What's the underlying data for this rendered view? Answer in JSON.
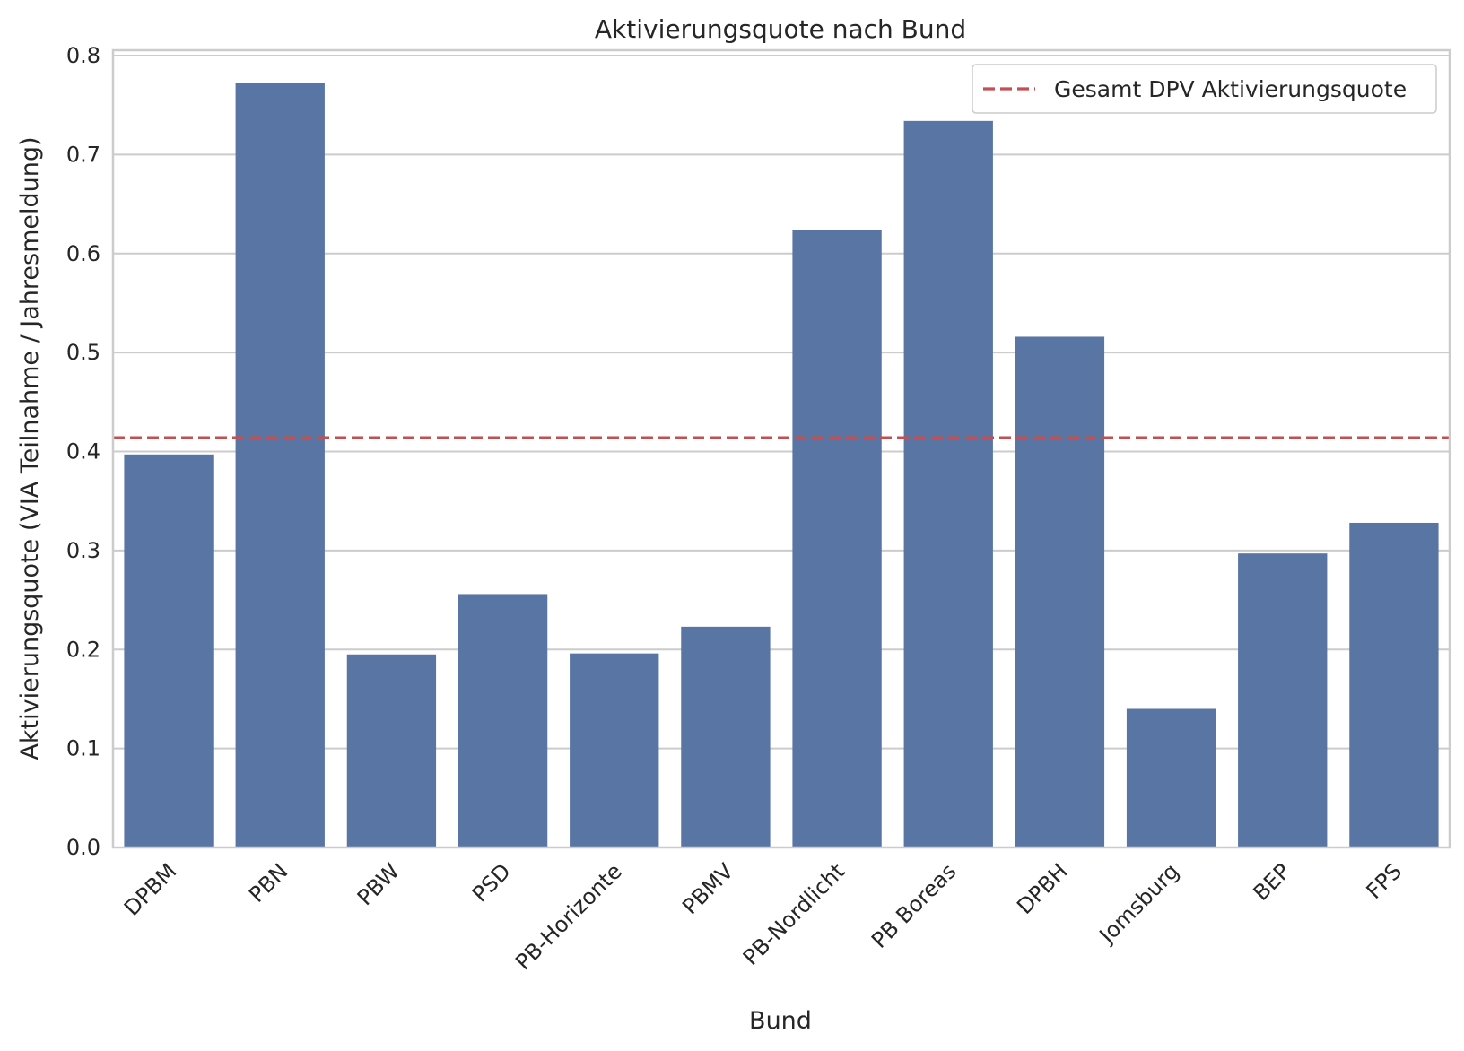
{
  "chart_data": {
    "type": "bar",
    "title": "Aktivierungsquote nach Bund",
    "xlabel": "Bund",
    "ylabel": "Aktivierungsquote (VIA Teilnahme / Jahresmeldung)",
    "categories": [
      "DPBM",
      "PBN",
      "PBW",
      "PSD",
      "PB-Horizonte",
      "PBMV",
      "PB-Nordlicht",
      "PB Boreas",
      "DPBH",
      "Jomsburg",
      "BEP",
      "FPS"
    ],
    "values": [
      0.397,
      0.772,
      0.195,
      0.256,
      0.196,
      0.223,
      0.624,
      0.734,
      0.516,
      0.14,
      0.297,
      0.328
    ],
    "ylim": [
      0,
      0.8
    ],
    "yticks": [
      "0.0",
      "0.1",
      "0.2",
      "0.3",
      "0.4",
      "0.5",
      "0.6",
      "0.7",
      "0.8"
    ],
    "reference_line": {
      "label": "Gesamt DPV Aktivierungsquote",
      "value": 0.414
    },
    "legend_position": "top-right",
    "grid": "horizontal",
    "bar_color": "#5975a4",
    "reference_color": "#c44e52"
  }
}
